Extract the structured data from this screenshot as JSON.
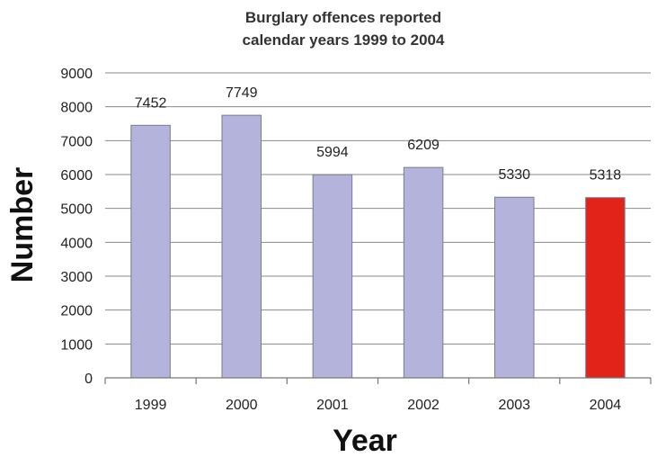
{
  "chart_data": {
    "type": "bar",
    "title_lines": [
      "Burglary offences reported",
      "calendar years 1999 to 2004"
    ],
    "xlabel": "Year",
    "ylabel": "Number",
    "categories": [
      "1999",
      "2000",
      "2001",
      "2002",
      "2003",
      "2004"
    ],
    "values": [
      7452,
      7749,
      5994,
      6209,
      5330,
      5318
    ],
    "data_labels": [
      "7452",
      "7749",
      "5994",
      "6209",
      "5330",
      "5318"
    ],
    "ylim": [
      0,
      9000
    ],
    "y_ticks": [
      0,
      1000,
      2000,
      3000,
      4000,
      5000,
      6000,
      7000,
      8000,
      9000
    ],
    "grid": true,
    "legend": "none",
    "colors": {
      "default_bar": "#b3b3db",
      "highlight_bar": "#e2231a"
    },
    "highlight_index": 5
  }
}
